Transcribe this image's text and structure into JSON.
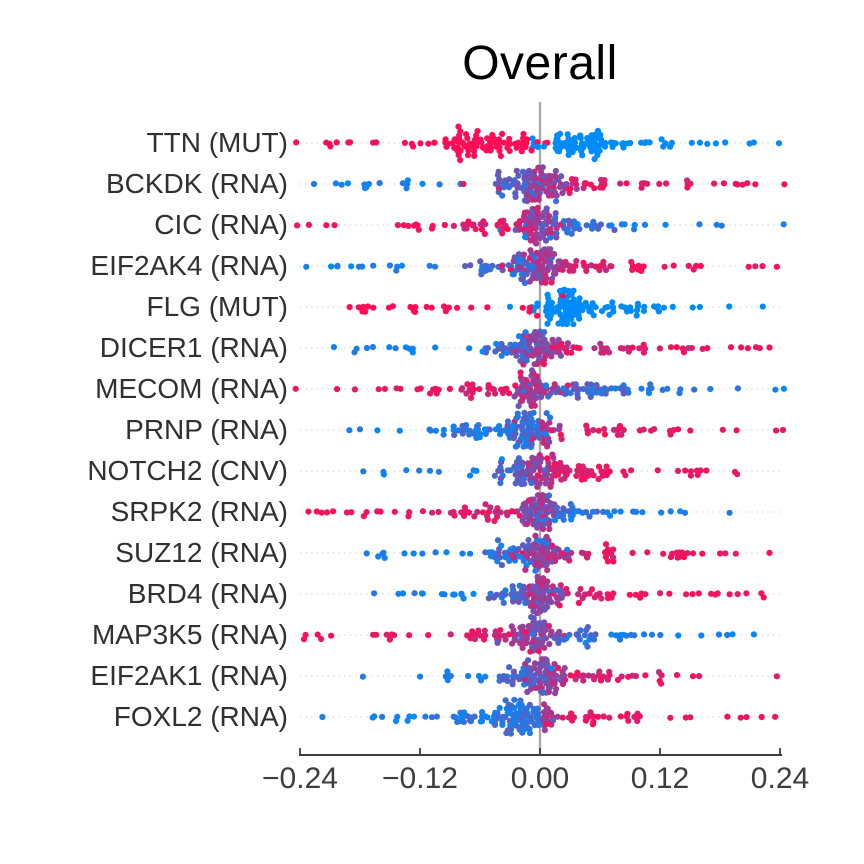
{
  "chart": {
    "title": "Overall",
    "x_axis": {
      "tick_labels": [
        "−0.24",
        "−0.12",
        "0.00",
        "0.12",
        "0.24"
      ],
      "tick_values": [
        -0.24,
        -0.12,
        0.0,
        0.12,
        0.24
      ]
    }
  },
  "colors": {
    "low_value": "#008bfb",
    "high_value": "#ff0d57",
    "zero_line": "#a9a9a9",
    "axis_line": "#3f3f3f",
    "gridline": "#d9d9e3",
    "label_text": "#303030",
    "tick_text": "#3d3d3d",
    "title_text": "#000000"
  },
  "chart_data": {
    "type": "beeswarm",
    "title": "Overall",
    "x_label": "",
    "x_range": [
      -0.24,
      0.24
    ],
    "grid": "dotted-horizontal-per-row",
    "legend": "none",
    "color_encoding": "feature value: low = #008bfb (blue), high = #ff0d57 (pink), midpoint purple",
    "group_format": [
      "n_points",
      "shap_mean",
      "shap_sd",
      "color_t_min",
      "color_t_max"
    ],
    "features": [
      {
        "label": "TTN (MUT)",
        "high_value_shap": "negative",
        "groups": [
          [
            14,
            -0.16,
            0.05,
            1,
            1
          ],
          [
            70,
            -0.055,
            0.028,
            1,
            1
          ],
          [
            8,
            -0.012,
            0.006,
            1,
            1
          ],
          [
            2,
            0.003,
            0.003,
            1,
            1
          ],
          [
            2,
            -0.004,
            0.003,
            0,
            0
          ],
          [
            60,
            0.045,
            0.022,
            0,
            0
          ],
          [
            26,
            0.13,
            0.06,
            0,
            0
          ]
        ]
      },
      {
        "label": "BCKDK (RNA)",
        "high_value_shap": "positive",
        "groups": [
          [
            16,
            -0.13,
            0.05,
            0,
            0.15
          ],
          [
            40,
            -0.022,
            0.016,
            0.1,
            0.5
          ],
          [
            55,
            0.004,
            0.011,
            0.4,
            0.8
          ],
          [
            30,
            0.05,
            0.03,
            0.75,
            1
          ],
          [
            16,
            0.16,
            0.05,
            0.9,
            1
          ]
        ]
      },
      {
        "label": "CIC (RNA)",
        "high_value_shap": "negative",
        "groups": [
          [
            16,
            -0.14,
            0.05,
            0.9,
            1
          ],
          [
            28,
            -0.05,
            0.03,
            0.72,
            1
          ],
          [
            55,
            -0.004,
            0.011,
            0.4,
            0.85
          ],
          [
            34,
            0.025,
            0.02,
            0.12,
            0.5
          ],
          [
            17,
            0.13,
            0.06,
            0,
            0.2
          ]
        ]
      },
      {
        "label": "EIF2AK4 (RNA)",
        "high_value_shap": "positive",
        "groups": [
          [
            15,
            -0.15,
            0.05,
            0,
            0.15
          ],
          [
            40,
            -0.03,
            0.02,
            0.08,
            0.42
          ],
          [
            55,
            0.0,
            0.011,
            0.38,
            0.75
          ],
          [
            32,
            0.05,
            0.03,
            0.7,
            1
          ],
          [
            18,
            0.15,
            0.055,
            0.88,
            1
          ]
        ]
      },
      {
        "label": "FLG (MUT)",
        "high_value_shap": "negative",
        "groups": [
          [
            22,
            -0.11,
            0.06,
            1,
            1
          ],
          [
            4,
            -0.015,
            0.01,
            1,
            1
          ],
          [
            75,
            0.022,
            0.015,
            0,
            0
          ],
          [
            30,
            0.07,
            0.03,
            0,
            0
          ],
          [
            9,
            0.15,
            0.045,
            0,
            0
          ]
        ]
      },
      {
        "label": "DICER1 (RNA)",
        "high_value_shap": "positive",
        "groups": [
          [
            17,
            -0.14,
            0.05,
            0,
            0.15
          ],
          [
            36,
            -0.025,
            0.018,
            0.08,
            0.45
          ],
          [
            52,
            0.0,
            0.011,
            0.4,
            0.8
          ],
          [
            30,
            0.05,
            0.034,
            0.7,
            1
          ],
          [
            16,
            0.16,
            0.05,
            0.88,
            1
          ]
        ]
      },
      {
        "label": "MECOM (RNA)",
        "high_value_shap": "negative",
        "groups": [
          [
            15,
            -0.15,
            0.05,
            0.88,
            1
          ],
          [
            30,
            -0.05,
            0.03,
            0.72,
            1
          ],
          [
            52,
            -0.005,
            0.012,
            0.4,
            0.85
          ],
          [
            40,
            0.05,
            0.03,
            0.05,
            0.38
          ],
          [
            14,
            0.14,
            0.05,
            0,
            0.2
          ]
        ]
      },
      {
        "label": "PRNP (RNA)",
        "high_value_shap": "positive",
        "groups": [
          [
            10,
            -0.14,
            0.04,
            0,
            0.15
          ],
          [
            30,
            -0.06,
            0.025,
            0.02,
            0.3
          ],
          [
            62,
            -0.014,
            0.011,
            0.05,
            0.38
          ],
          [
            16,
            0.006,
            0.007,
            0.5,
            0.8
          ],
          [
            25,
            0.06,
            0.035,
            0.78,
            1
          ],
          [
            8,
            0.17,
            0.05,
            0.9,
            1
          ]
        ]
      },
      {
        "label": "NOTCH2 (CNV)",
        "high_value_shap": "positive",
        "groups": [
          [
            12,
            -0.12,
            0.045,
            0,
            0.18
          ],
          [
            36,
            -0.02,
            0.014,
            0.18,
            0.5
          ],
          [
            34,
            0.0,
            0.01,
            0.45,
            0.8
          ],
          [
            46,
            0.035,
            0.024,
            0.75,
            1
          ],
          [
            14,
            0.13,
            0.05,
            0.85,
            1
          ]
        ]
      },
      {
        "label": "SRPK2 (RNA)",
        "high_value_shap": "negative",
        "groups": [
          [
            5,
            -0.225,
            0.012,
            0.95,
            1
          ],
          [
            14,
            -0.14,
            0.04,
            0.88,
            1
          ],
          [
            28,
            -0.05,
            0.03,
            0.7,
            1
          ],
          [
            52,
            -0.004,
            0.011,
            0.35,
            0.75
          ],
          [
            32,
            0.02,
            0.018,
            0.06,
            0.4
          ],
          [
            14,
            0.1,
            0.05,
            0,
            0.2
          ]
        ]
      },
      {
        "label": "SUZ12 (RNA)",
        "high_value_shap": "positive",
        "groups": [
          [
            14,
            -0.14,
            0.055,
            0,
            0.15
          ],
          [
            38,
            -0.025,
            0.018,
            0.06,
            0.4
          ],
          [
            52,
            0.0,
            0.011,
            0.4,
            0.8
          ],
          [
            26,
            0.045,
            0.03,
            0.75,
            1
          ],
          [
            16,
            0.16,
            0.06,
            0.88,
            1
          ]
        ]
      },
      {
        "label": "BRD4 (RNA)",
        "high_value_shap": "positive",
        "groups": [
          [
            15,
            -0.11,
            0.045,
            0,
            0.2
          ],
          [
            36,
            -0.02,
            0.015,
            0.1,
            0.45
          ],
          [
            52,
            0.004,
            0.011,
            0.4,
            0.8
          ],
          [
            28,
            0.05,
            0.03,
            0.72,
            1
          ],
          [
            14,
            0.17,
            0.05,
            0.88,
            1
          ]
        ]
      },
      {
        "label": "MAP3K5 (RNA)",
        "high_value_shap": "negative",
        "groups": [
          [
            3,
            -0.23,
            0.01,
            0.95,
            1
          ],
          [
            14,
            -0.13,
            0.05,
            0.88,
            1
          ],
          [
            26,
            -0.045,
            0.028,
            0.7,
            1
          ],
          [
            54,
            -0.003,
            0.011,
            0.35,
            0.75
          ],
          [
            34,
            0.035,
            0.028,
            0.05,
            0.38
          ],
          [
            12,
            0.13,
            0.06,
            0,
            0.15
          ]
        ]
      },
      {
        "label": "EIF2AK1 (RNA)",
        "high_value_shap": "positive",
        "groups": [
          [
            12,
            -0.1,
            0.04,
            0,
            0.2
          ],
          [
            36,
            -0.02,
            0.015,
            0.1,
            0.45
          ],
          [
            54,
            0.005,
            0.012,
            0.4,
            0.8
          ],
          [
            26,
            0.05,
            0.03,
            0.7,
            1
          ],
          [
            9,
            0.14,
            0.04,
            0.88,
            1
          ]
        ]
      },
      {
        "label": "FOXL2 (RNA)",
        "high_value_shap": "positive",
        "groups": [
          [
            10,
            -0.14,
            0.04,
            0,
            0.15
          ],
          [
            35,
            -0.06,
            0.03,
            0.02,
            0.3
          ],
          [
            62,
            -0.018,
            0.012,
            0.05,
            0.38
          ],
          [
            15,
            0.006,
            0.007,
            0.5,
            0.85
          ],
          [
            22,
            0.05,
            0.03,
            0.78,
            1
          ],
          [
            11,
            0.16,
            0.055,
            0.88,
            1
          ]
        ]
      }
    ]
  }
}
